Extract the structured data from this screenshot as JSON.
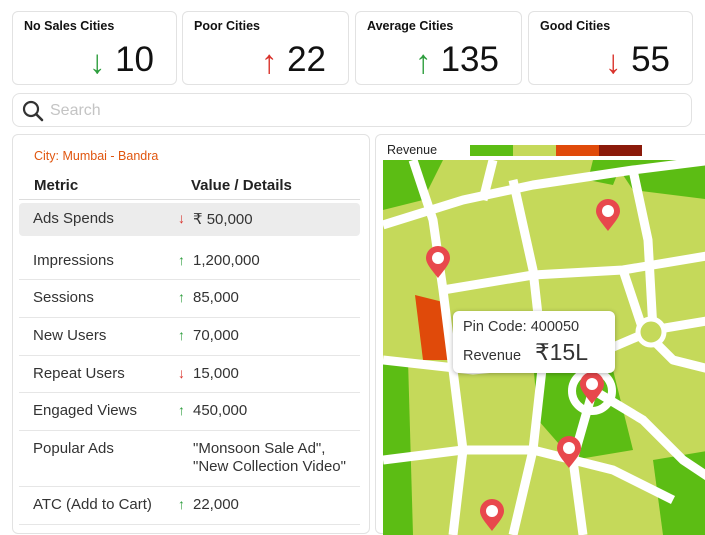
{
  "cards": [
    {
      "label": "No Sales Cities",
      "value": 10,
      "trend": "down",
      "color": "#2e9e3e"
    },
    {
      "label": "Poor Cities",
      "value": 22,
      "trend": "up",
      "color": "#d9322b"
    },
    {
      "label": "Average Cities",
      "value": 135,
      "trend": "up",
      "color": "#2e9e3e"
    },
    {
      "label": "Good Cities",
      "value": 55,
      "trend": "down",
      "color": "#d9322b"
    }
  ],
  "search": {
    "placeholder": "Search"
  },
  "details": {
    "city": "City: Mumbai - Bandra",
    "headers": [
      "Metric",
      "Value / Details"
    ],
    "rows": [
      {
        "metric": "Ads Spends",
        "value": [
          "₹ 50,000"
        ],
        "trend": "down",
        "highlight": true
      },
      {
        "metric": "Impressions",
        "value": [
          "1,200,000"
        ],
        "trend": "up"
      },
      {
        "metric": "Sessions",
        "value": [
          "85,000"
        ],
        "trend": "up"
      },
      {
        "metric": "New Users",
        "value": [
          "70,000"
        ],
        "trend": "up"
      },
      {
        "metric": "Repeat Users",
        "value": [
          "15,000"
        ],
        "trend": "down"
      },
      {
        "metric": "Engaged Views",
        "value": [
          "450,000"
        ],
        "trend": "up"
      },
      {
        "metric": "Popular Ads",
        "value": [
          "\"Monsoon Sale Ad\",",
          "\"New Collection Video\""
        ]
      },
      {
        "metric": "ATC (Add to Cart)",
        "value": [
          "22,000"
        ],
        "trend": "up"
      }
    ]
  },
  "map": {
    "legend_title": "Revenue",
    "legend_colors": [
      "#5cbd14",
      "#c5d95a",
      "#e04a0a",
      "#8b1a0a"
    ],
    "tooltip": {
      "pin_label": "Pin Code: 400050",
      "revenue_label": "Revenue",
      "revenue_value": "₹15L"
    }
  }
}
